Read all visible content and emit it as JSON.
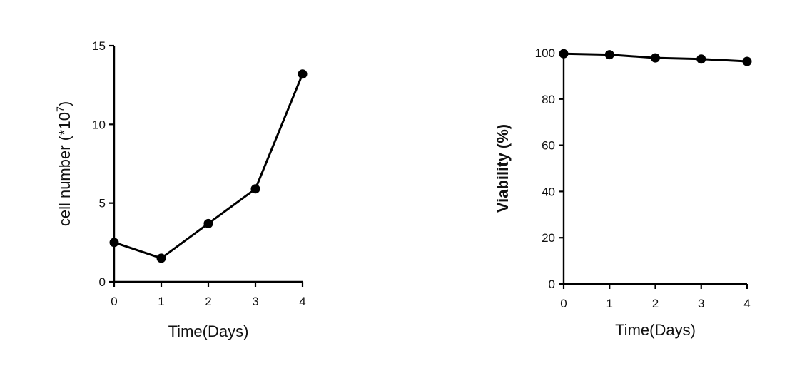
{
  "chart_data": [
    {
      "type": "line",
      "x": [
        0,
        1,
        2,
        3,
        4
      ],
      "series": [
        {
          "values": [
            2.5,
            1.5,
            3.7,
            5.9,
            13.2
          ]
        }
      ],
      "xlabel": "Time(Days)",
      "ylabel": "cell number (*10",
      "ylabel_superscript": "7",
      "ylabel_suffix": ")",
      "xticks": [
        "0",
        "1",
        "2",
        "3",
        "4"
      ],
      "yticks": [
        "0",
        "5",
        "10",
        "15"
      ],
      "xlim": [
        0,
        4
      ],
      "ylim": [
        0,
        15
      ],
      "grid": false,
      "color": "#000000"
    },
    {
      "type": "line",
      "x": [
        0,
        1,
        2,
        3,
        4
      ],
      "series": [
        {
          "values": [
            99.6,
            99.2,
            97.8,
            97.3,
            96.3
          ]
        }
      ],
      "xlabel": "Time(Days)",
      "ylabel": "Viability (%)",
      "xticks": [
        "0",
        "1",
        "2",
        "3",
        "4"
      ],
      "yticks": [
        "0",
        "20",
        "40",
        "60",
        "80",
        "100"
      ],
      "xlim": [
        0,
        4
      ],
      "ylim": [
        0,
        100
      ],
      "grid": false,
      "color": "#000000"
    }
  ]
}
